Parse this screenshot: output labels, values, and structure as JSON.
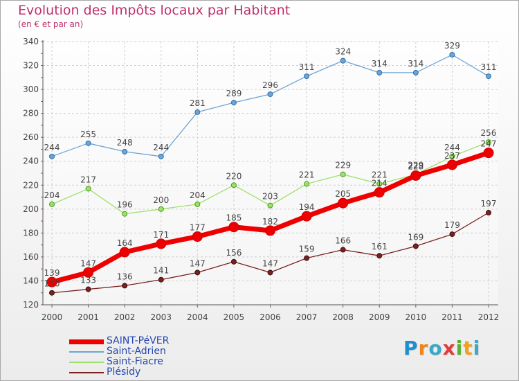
{
  "title": "Evolution des Impôts locaux par Habitant",
  "subtitle": "(en € et par an)",
  "logo": {
    "letters": [
      "P",
      "r",
      "o",
      "x",
      "i",
      "t",
      "i"
    ],
    "colors": [
      "#1d8fd0",
      "#f0841c",
      "#3aa8c8",
      "#e23b3b",
      "#58b030",
      "#f0a21c",
      "#3aa8c8"
    ]
  },
  "chart_data": {
    "type": "line",
    "title": "Evolution des Impôts locaux par Habitant",
    "subtitle": "(en € et par an)",
    "xlabel": "",
    "ylabel": "",
    "x": [
      "2000",
      "2001",
      "2002",
      "2003",
      "2004",
      "2005",
      "2006",
      "2007",
      "2008",
      "2009",
      "2010",
      "2011",
      "2012"
    ],
    "ylim": [
      120,
      340
    ],
    "yticks": [
      120,
      140,
      160,
      180,
      200,
      220,
      240,
      260,
      280,
      300,
      320,
      340
    ],
    "grid": true,
    "legend_position": "bottom-left",
    "series": [
      {
        "name": "SAINT-PéVER",
        "color": "#ee0000",
        "values": [
          139,
          147,
          164,
          171,
          177,
          185,
          182,
          194,
          205,
          214,
          228,
          237,
          247
        ],
        "labels": [
          "139",
          "147",
          "164",
          "171",
          "177",
          "185",
          "182",
          "194",
          "205",
          "214",
          "228",
          "237",
          "247"
        ]
      },
      {
        "name": "Saint-Adrien",
        "color": "#6fa4d6",
        "values": [
          244,
          255,
          248,
          244,
          281,
          289,
          296,
          311,
          324,
          314,
          314,
          329,
          311
        ],
        "labels": [
          "244",
          "255",
          "248",
          "244",
          "281",
          "289",
          "296",
          "311",
          "324",
          "314",
          "314",
          "329",
          "311"
        ]
      },
      {
        "name": "Saint-Fiacre",
        "color": "#9ee06a",
        "values": [
          204,
          217,
          196,
          200,
          204,
          220,
          203,
          221,
          229,
          221,
          229,
          244,
          256
        ],
        "labels": [
          "204",
          "217",
          "196",
          "200",
          "204",
          "220",
          "203",
          "221",
          "229",
          "221",
          "229",
          "244",
          "256"
        ]
      },
      {
        "name": "Plésidy",
        "color": "#7a2020",
        "values": [
          130,
          133,
          136,
          141,
          147,
          156,
          147,
          159,
          166,
          161,
          169,
          179,
          197
        ],
        "labels": [
          "130",
          "133",
          "136",
          "141",
          "147",
          "156",
          "147",
          "159",
          "166",
          "161",
          "169",
          "179",
          "197"
        ]
      }
    ]
  }
}
